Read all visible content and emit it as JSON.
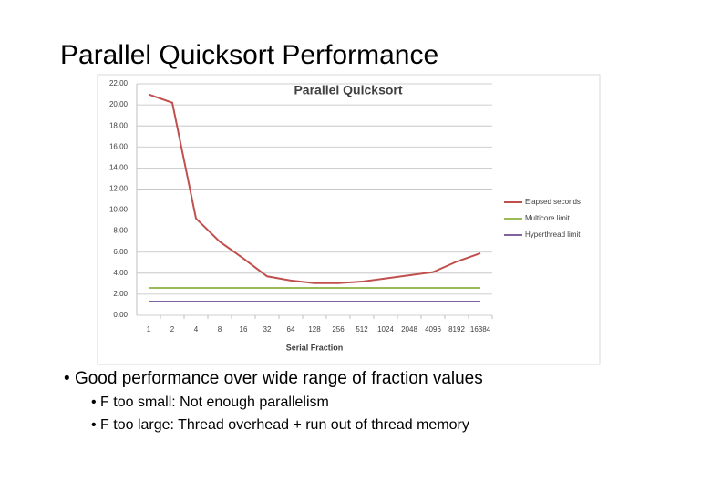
{
  "slide": {
    "title": "Parallel Quicksort Performance",
    "bullets": [
      {
        "text": "Good performance over wide range of fraction values",
        "sub": [
          "F too small: Not enough parallelism",
          "F too large: Thread overhead + run out of thread memory"
        ]
      }
    ]
  },
  "chart_data": {
    "type": "line",
    "title": "Parallel Quicksort",
    "x_label": "Serial Fraction",
    "categories": [
      "1",
      "2",
      "4",
      "8",
      "16",
      "32",
      "64",
      "128",
      "256",
      "512",
      "1024",
      "2048",
      "4096",
      "8192",
      "16384"
    ],
    "series": [
      {
        "name": "Elapsed seconds",
        "color": "#c0504d",
        "values": [
          21.0,
          20.2,
          9.2,
          7.0,
          5.4,
          3.7,
          3.3,
          3.05,
          3.05,
          3.2,
          3.5,
          3.8,
          4.1,
          5.1,
          5.9
        ]
      },
      {
        "name": "Multicore limit",
        "color": "#9bbb59",
        "values": [
          2.6,
          2.6,
          2.6,
          2.6,
          2.6,
          2.6,
          2.6,
          2.6,
          2.6,
          2.6,
          2.6,
          2.6,
          2.6,
          2.6,
          2.6
        ]
      },
      {
        "name": "Hyperthread limit",
        "color": "#8064a2",
        "values": [
          1.3,
          1.3,
          1.3,
          1.3,
          1.3,
          1.3,
          1.3,
          1.3,
          1.3,
          1.3,
          1.3,
          1.3,
          1.3,
          1.3,
          1.3
        ]
      }
    ],
    "ylim": [
      0,
      22
    ],
    "yticks": [
      {
        "value": 0,
        "label": "0.00"
      },
      {
        "value": 2,
        "label": "2.00"
      },
      {
        "value": 4,
        "label": "4.00"
      },
      {
        "value": 6,
        "label": "6.00"
      },
      {
        "value": 8,
        "label": "8.00"
      },
      {
        "value": 10,
        "label": "10.00"
      },
      {
        "value": 12,
        "label": "12.00"
      },
      {
        "value": 14,
        "label": "14.00"
      },
      {
        "value": 16,
        "label": "16.00"
      },
      {
        "value": 18,
        "label": "18.00"
      },
      {
        "value": 20,
        "label": "20.00"
      },
      {
        "value": 22,
        "label": "22.00"
      }
    ],
    "grid": true,
    "legend": "right"
  }
}
